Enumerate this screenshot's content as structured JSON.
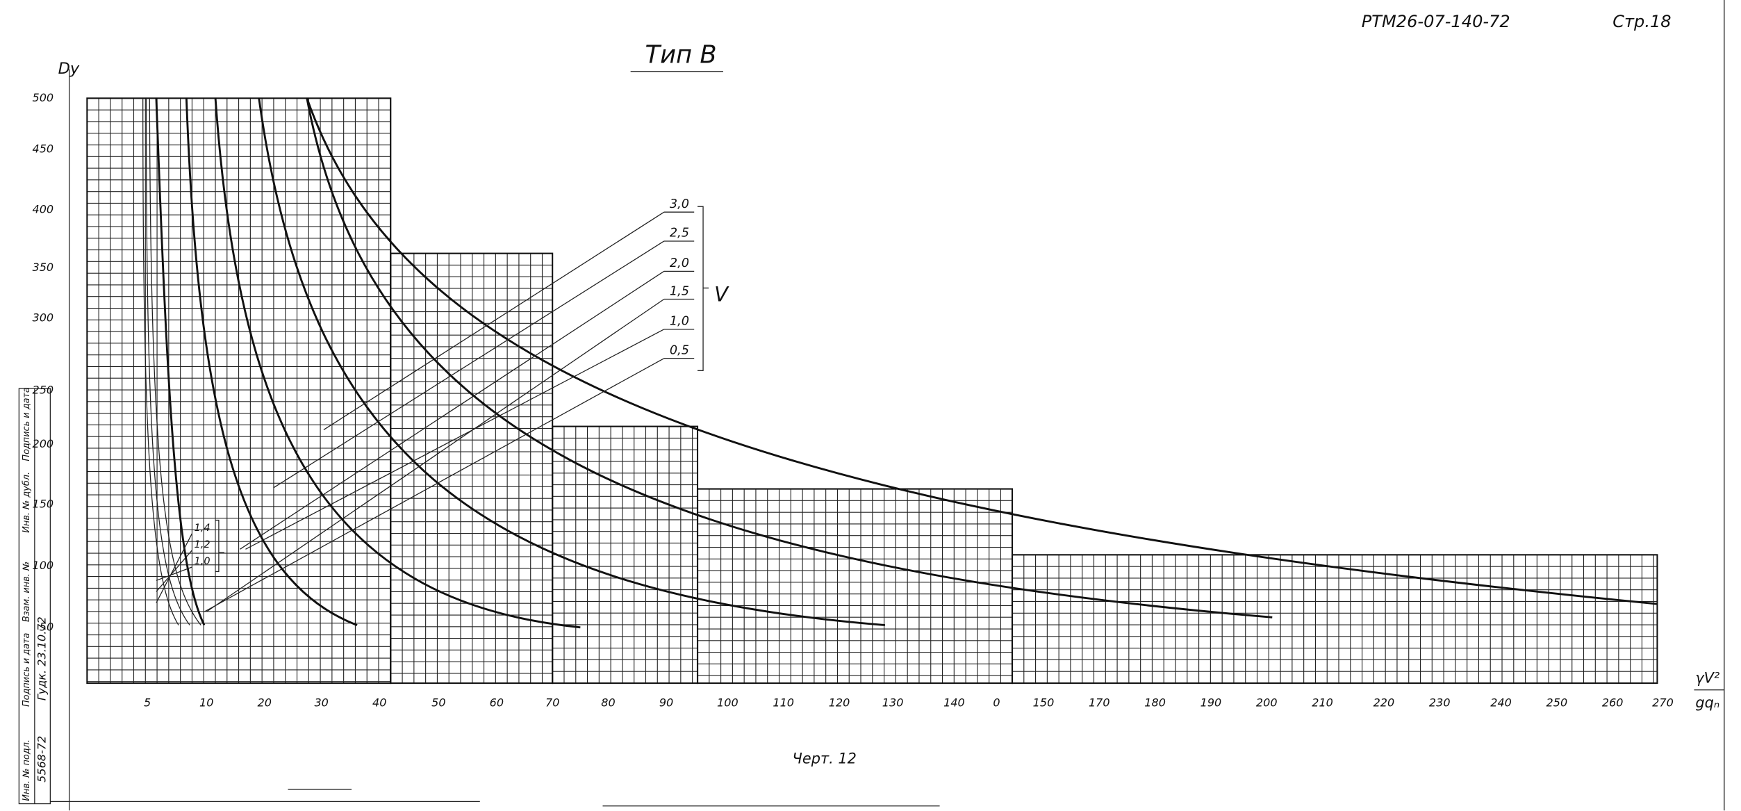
{
  "header": {
    "doc_code": "РТМ26-07-140-72",
    "page": "Стр.18"
  },
  "title": "Тип В",
  "y_axis": {
    "label": "Dy",
    "ticks": [
      "500",
      "450",
      "400",
      "350",
      "300",
      "250",
      "200",
      "150",
      "100",
      "50"
    ]
  },
  "x_axis": {
    "label_top": "γV²",
    "label_bottom": "gqₙ",
    "ticks": [
      "5",
      "10",
      "20",
      "30",
      "40",
      "50",
      "60",
      "70",
      "80",
      "90",
      "100",
      "110",
      "120",
      "130",
      "140",
      "0",
      "150",
      "170",
      "180",
      "190",
      "200",
      "210",
      "220",
      "230",
      "240",
      "250",
      "260",
      "270"
    ]
  },
  "v_scale": {
    "symbol": "V",
    "labels": [
      "3,0",
      "2,5",
      "2,0",
      "1,5",
      "1,0",
      "0,5"
    ]
  },
  "small_scale": {
    "labels": [
      "1,4",
      "1,2",
      "1,0"
    ]
  },
  "caption": "Черт. 12",
  "stamp": {
    "fields": [
      "Инв. № подл.",
      "Подпись и дата",
      "Взам. инв. №",
      "Инв. № дубл.",
      "Подпись и дата"
    ],
    "values": [
      "5568-72",
      "Гудк. 23.10.72"
    ]
  }
}
